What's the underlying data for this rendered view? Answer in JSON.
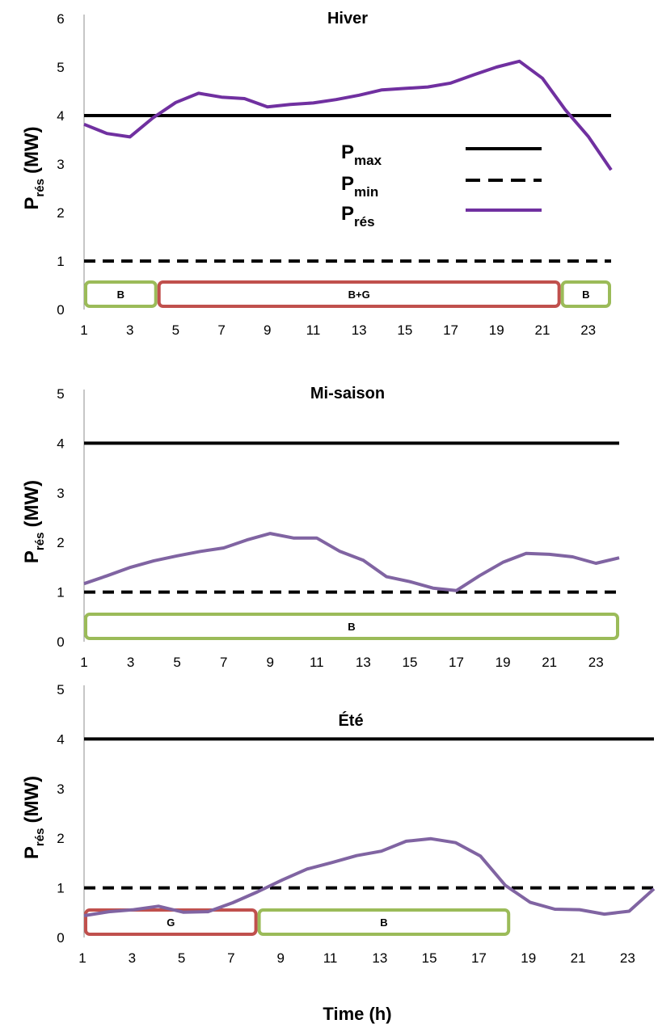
{
  "chart_data": [
    {
      "type": "line",
      "title": "Hiver",
      "ylabel": {
        "main": "P",
        "sub": "rés",
        "unit": "(MW)"
      },
      "xlabel": "",
      "xlim": [
        1,
        24
      ],
      "ylim": [
        0,
        6
      ],
      "x_ticks": [
        "1",
        "3",
        "5",
        "7",
        "9",
        "11",
        "13",
        "15",
        "17",
        "19",
        "21",
        "23"
      ],
      "y_ticks": [
        "0",
        "1",
        "2",
        "3",
        "4",
        "5",
        "6"
      ],
      "x": [
        1,
        2,
        3,
        4,
        5,
        6,
        7,
        8,
        9,
        10,
        11,
        12,
        13,
        14,
        15,
        16,
        17,
        18,
        19,
        20,
        21,
        22,
        23,
        24
      ],
      "series": [
        {
          "key": "pmax",
          "style": "solid",
          "color": "#000000",
          "values": [
            4,
            4,
            4,
            4,
            4,
            4,
            4,
            4,
            4,
            4,
            4,
            4,
            4,
            4,
            4,
            4,
            4,
            4,
            4,
            4,
            4,
            4,
            4,
            4
          ]
        },
        {
          "key": "pmin",
          "style": "dashed",
          "color": "#000000",
          "values": [
            1,
            1,
            1,
            1,
            1,
            1,
            1,
            1,
            1,
            1,
            1,
            1,
            1,
            1,
            1,
            1,
            1,
            1,
            1,
            1,
            1,
            1,
            1,
            1
          ]
        },
        {
          "key": "pres",
          "style": "solid",
          "color": "#7030A0",
          "values": [
            3.82,
            3.63,
            3.56,
            3.95,
            4.27,
            4.46,
            4.38,
            4.35,
            4.18,
            4.23,
            4.26,
            4.33,
            4.42,
            4.53,
            4.56,
            4.59,
            4.67,
            4.84,
            5.0,
            5.12,
            4.77,
            4.12,
            3.57,
            2.88
          ]
        }
      ],
      "legend": {
        "position": "center-right",
        "entries": [
          {
            "main": "P",
            "sub": "max",
            "style": "solid",
            "color": "#000000"
          },
          {
            "main": "P",
            "sub": "min",
            "style": "dashed",
            "color": "#000000"
          },
          {
            "main": "P",
            "sub": "rés",
            "style": "solid",
            "color": "#7030A0"
          }
        ]
      },
      "modes": [
        {
          "label": "B",
          "from": 1,
          "to": 4.2,
          "color": "#9BBB59"
        },
        {
          "label": "B+G",
          "from": 4.2,
          "to": 21.8,
          "color": "#C0504D"
        },
        {
          "label": "B",
          "from": 21.8,
          "to": 24,
          "color": "#9BBB59"
        }
      ]
    },
    {
      "type": "line",
      "title": "Mi-saison",
      "ylabel": {
        "main": "P",
        "sub": "rés",
        "unit": "(MW)"
      },
      "xlabel": "",
      "xlim": [
        1,
        24
      ],
      "ylim": [
        0,
        5
      ],
      "x_ticks": [
        "1",
        "3",
        "5",
        "7",
        "9",
        "11",
        "13",
        "15",
        "17",
        "19",
        "21",
        "23"
      ],
      "y_ticks": [
        "0",
        "1",
        "2",
        "3",
        "4",
        "5"
      ],
      "x": [
        1,
        2,
        3,
        4,
        5,
        6,
        7,
        8,
        9,
        10,
        11,
        12,
        13,
        14,
        15,
        16,
        17,
        18,
        19,
        20,
        21,
        22,
        23,
        24
      ],
      "series": [
        {
          "key": "pmax",
          "style": "solid",
          "color": "#000000",
          "values": [
            4,
            4,
            4,
            4,
            4,
            4,
            4,
            4,
            4,
            4,
            4,
            4,
            4,
            4,
            4,
            4,
            4,
            4,
            4,
            4,
            4,
            4,
            4,
            4
          ]
        },
        {
          "key": "pmin",
          "style": "dashed",
          "color": "#000000",
          "values": [
            1,
            1,
            1,
            1,
            1,
            1,
            1,
            1,
            1,
            1,
            1,
            1,
            1,
            1,
            1,
            1,
            1,
            1,
            1,
            1,
            1,
            1,
            1,
            1
          ]
        },
        {
          "key": "pres",
          "style": "solid",
          "color": "#8064A2",
          "values": [
            1.17,
            1.33,
            1.5,
            1.63,
            1.73,
            1.82,
            1.89,
            2.05,
            2.18,
            2.09,
            2.09,
            1.82,
            1.64,
            1.31,
            1.21,
            1.08,
            1.03,
            1.33,
            1.6,
            1.78,
            1.76,
            1.71,
            1.58,
            1.69
          ]
        }
      ],
      "modes": [
        {
          "label": "B",
          "from": 1,
          "to": 24,
          "color": "#9BBB59"
        }
      ]
    },
    {
      "type": "line",
      "title": "Été",
      "ylabel": {
        "main": "P",
        "sub": "rés",
        "unit": "(MW)"
      },
      "xlabel": "Time (h)",
      "xlim": [
        1,
        24
      ],
      "ylim": [
        0,
        5
      ],
      "x_ticks": [
        "1",
        "3",
        "5",
        "7",
        "9",
        "11",
        "13",
        "15",
        "17",
        "19",
        "21",
        "23"
      ],
      "y_ticks": [
        "0",
        "1",
        "2",
        "3",
        "4",
        "5"
      ],
      "x": [
        1,
        2,
        3,
        4,
        5,
        6,
        7,
        8,
        9,
        10,
        11,
        12,
        13,
        14,
        15,
        16,
        17,
        18,
        19,
        20,
        21,
        22,
        23,
        24
      ],
      "series": [
        {
          "key": "pmax",
          "style": "solid",
          "color": "#000000",
          "values": [
            4,
            4,
            4,
            4,
            4,
            4,
            4,
            4,
            4,
            4,
            4,
            4,
            4,
            4,
            4,
            4,
            4,
            4,
            4,
            4,
            4,
            4,
            4,
            4
          ]
        },
        {
          "key": "pmin",
          "style": "dashed",
          "color": "#000000",
          "values": [
            1,
            1,
            1,
            1,
            1,
            1,
            1,
            1,
            1,
            1,
            1,
            1,
            1,
            1,
            1,
            1,
            1,
            1,
            1,
            1,
            1,
            1,
            1,
            1
          ]
        },
        {
          "key": "pres",
          "style": "solid",
          "color": "#8064A2",
          "values": [
            0.44,
            0.52,
            0.56,
            0.63,
            0.51,
            0.52,
            0.7,
            0.92,
            1.16,
            1.38,
            1.51,
            1.65,
            1.74,
            1.94,
            1.99,
            1.91,
            1.64,
            1.05,
            0.71,
            0.57,
            0.56,
            0.47,
            0.53,
            0.98
          ]
        }
      ],
      "modes": [
        {
          "label": "G",
          "from": 1,
          "to": 8,
          "color": "#C0504D"
        },
        {
          "label": "B",
          "from": 8,
          "to": 18.2,
          "color": "#9BBB59"
        }
      ]
    }
  ]
}
